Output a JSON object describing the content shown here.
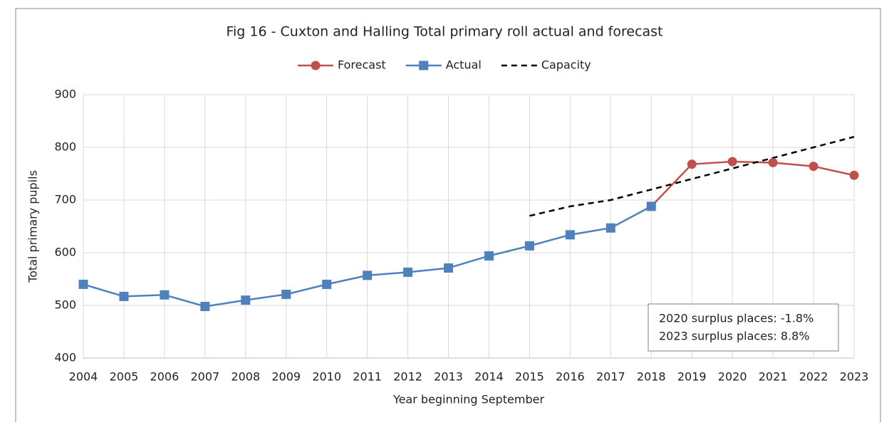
{
  "chart_data": {
    "type": "line",
    "title": "Fig 16 -  Cuxton and Halling Total primary roll actual and forecast",
    "x_label": "Year beginning September",
    "y_label": "Total primary pupils",
    "categories": [
      "2004",
      "2005",
      "2006",
      "2007",
      "2008",
      "2009",
      "2010",
      "2011",
      "2012",
      "2013",
      "2014",
      "2015",
      "2016",
      "2017",
      "2018",
      "2019",
      "2020",
      "2021",
      "2022",
      "2023"
    ],
    "series": [
      {
        "name": "Forecast",
        "color": "#c0504d",
        "marker": "circle",
        "linestyle": "solid",
        "values": [
          null,
          null,
          null,
          null,
          null,
          null,
          null,
          null,
          null,
          null,
          null,
          null,
          null,
          null,
          688,
          768,
          773,
          771,
          764,
          747
        ]
      },
      {
        "name": "Actual",
        "color": "#4f81bd",
        "marker": "square",
        "linestyle": "solid",
        "values": [
          540,
          517,
          520,
          498,
          510,
          521,
          540,
          557,
          563,
          571,
          594,
          613,
          634,
          647,
          688,
          null,
          null,
          null,
          null,
          null
        ]
      },
      {
        "name": "Capacity",
        "color": "#000000",
        "marker": "none",
        "linestyle": "dashed",
        "values": [
          null,
          null,
          null,
          null,
          null,
          null,
          null,
          null,
          null,
          null,
          null,
          670,
          688,
          700,
          720,
          740,
          760,
          780,
          800,
          820
        ]
      }
    ],
    "ylim": [
      400,
      900
    ],
    "yticks": [
      400,
      500,
      600,
      700,
      800,
      900
    ],
    "grid": true,
    "legend": "top",
    "annotations": [
      "2020 surplus places: -1.8%",
      "2023 surplus places: 8.8%"
    ]
  }
}
